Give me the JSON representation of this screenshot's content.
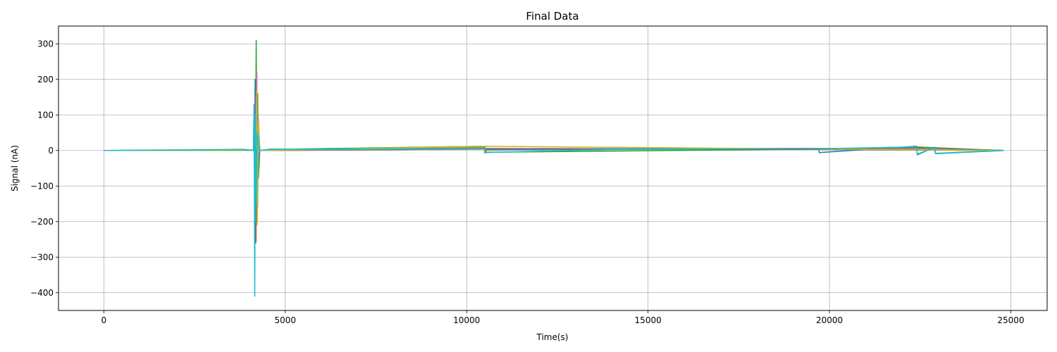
{
  "chart_data": {
    "type": "line",
    "title": "Final Data",
    "xlabel": "Time(s)",
    "ylabel": "Signal (nA)",
    "xlim": [
      -1250,
      26000
    ],
    "ylim": [
      -450,
      350
    ],
    "xticks": [
      0,
      5000,
      10000,
      15000,
      20000,
      25000
    ],
    "xtick_labels": [
      "0",
      "5000",
      "10000",
      "15000",
      "20000",
      "25000"
    ],
    "yticks": [
      -400,
      -300,
      -200,
      -100,
      0,
      100,
      200,
      300
    ],
    "ytick_labels": [
      "−400",
      "−300",
      "−200",
      "−100",
      "0",
      "100",
      "200",
      "300"
    ],
    "grid": true,
    "legend": false,
    "series": [
      {
        "color": "#1f77b4",
        "x": [
          0,
          3800,
          4150,
          4170,
          4190,
          4210,
          4230,
          4260,
          4300,
          4600,
          7000,
          10500,
          10520,
          10540,
          14000,
          19700,
          19720,
          22400,
          22420,
          22900,
          22920,
          24800
        ],
        "y": [
          0,
          0,
          0,
          200,
          -250,
          150,
          -80,
          20,
          0,
          3,
          2,
          8,
          -7,
          2,
          3,
          6,
          -6,
          12,
          -12,
          9,
          -9,
          0
        ]
      },
      {
        "color": "#ff7f0e",
        "x": [
          0,
          3800,
          4160,
          4180,
          4200,
          4220,
          4250,
          4300,
          4600,
          10480,
          10500,
          10520,
          19700,
          22400,
          24800
        ],
        "y": [
          0,
          1,
          0,
          -150,
          180,
          -120,
          60,
          0,
          2,
          10,
          -8,
          4,
          3,
          8,
          0
        ]
      },
      {
        "color": "#2ca02c",
        "x": [
          0,
          3850,
          4180,
          4200,
          4220,
          4240,
          4260,
          4300,
          4600,
          10500,
          10520,
          19710,
          22410,
          24800
        ],
        "y": [
          0,
          3,
          0,
          310,
          -200,
          160,
          -80,
          0,
          3,
          12,
          -5,
          4,
          10,
          0
        ]
      },
      {
        "color": "#d62728",
        "x": [
          0,
          4170,
          4190,
          4210,
          4230,
          4250,
          4300,
          10500,
          19700,
          22400,
          24800
        ],
        "y": [
          0,
          0,
          -260,
          180,
          -100,
          40,
          0,
          6,
          3,
          7,
          0
        ]
      },
      {
        "color": "#9467bd",
        "x": [
          0,
          4150,
          4170,
          4190,
          4210,
          4230,
          4300,
          10500,
          22400,
          24800
        ],
        "y": [
          0,
          0,
          150,
          -200,
          100,
          -40,
          0,
          5,
          6,
          0
        ]
      },
      {
        "color": "#8c564b",
        "x": [
          0,
          4180,
          4200,
          4220,
          4240,
          4300,
          10500,
          19700,
          24800
        ],
        "y": [
          0,
          0,
          120,
          -180,
          70,
          0,
          4,
          3,
          0
        ]
      },
      {
        "color": "#e377c2",
        "x": [
          0,
          4200,
          4220,
          4240,
          4260,
          4300,
          10510,
          22410,
          24800
        ],
        "y": [
          0,
          0,
          220,
          -160,
          90,
          0,
          5,
          5,
          0
        ]
      },
      {
        "color": "#7f7f7f",
        "x": [
          0,
          4170,
          4190,
          4210,
          4300,
          10500,
          22900,
          24800
        ],
        "y": [
          0,
          0,
          -90,
          110,
          0,
          4,
          6,
          0
        ]
      },
      {
        "color": "#bcbd22",
        "x": [
          0,
          4190,
          4210,
          4230,
          4250,
          4300,
          10490,
          19700,
          24800
        ],
        "y": [
          0,
          0,
          170,
          -210,
          80,
          0,
          12,
          4,
          0
        ]
      },
      {
        "color": "#17becf",
        "x": [
          0,
          3800,
          4120,
          4140,
          4160,
          4180,
          4200,
          4230,
          4300,
          4600,
          7100,
          10500,
          10520,
          14000,
          19720,
          22400,
          22420,
          22900,
          22920,
          24800
        ],
        "y": [
          0,
          2,
          0,
          130,
          -410,
          100,
          -150,
          50,
          0,
          4,
          3,
          7,
          -6,
          3,
          5,
          10,
          -10,
          8,
          -8,
          0
        ]
      }
    ]
  }
}
